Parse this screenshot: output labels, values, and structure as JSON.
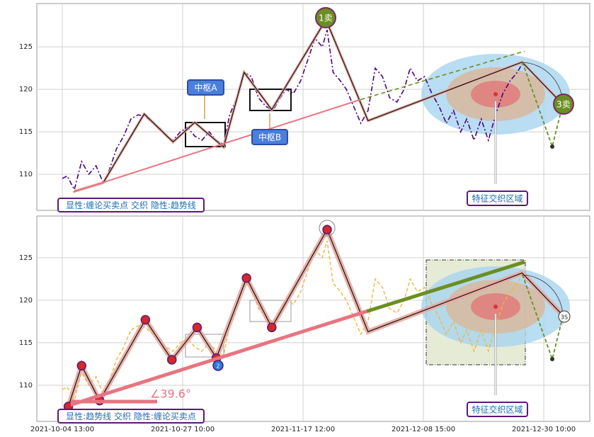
{
  "chart_data": [
    {
      "type": "line",
      "xlim": [
        -21.2,
        438.2
      ],
      "ylim": [
        105.75,
        130.1
      ],
      "yticks": [
        110,
        115,
        120,
        125
      ],
      "grid": true,
      "series": [
        {
          "color": "#4b0082",
          "style": "dashdot",
          "x": [
            0,
            4,
            10,
            16,
            22,
            28,
            34,
            39,
            45,
            51,
            57,
            63,
            69,
            75,
            81,
            86,
            92,
            98,
            104,
            110,
            116,
            122,
            128,
            134,
            139,
            145,
            151,
            157,
            163,
            169,
            175,
            181,
            186,
            192,
            198,
            204,
            210,
            216,
            220,
            225,
            231,
            236,
            242,
            248,
            254,
            260,
            266,
            272,
            278,
            284,
            289,
            295,
            301,
            307,
            313,
            319,
            325,
            331,
            336,
            342,
            348,
            354,
            360,
            366,
            372,
            378,
            382
          ],
          "values": [
            109.5,
            109.8,
            108.2,
            111.5,
            110,
            111,
            109,
            110.5,
            113,
            114.5,
            116.5,
            117,
            116.8,
            116,
            115.5,
            114.5,
            114,
            115,
            115.5,
            114.5,
            114,
            115,
            114,
            113.5,
            117,
            119,
            122,
            121.5,
            119,
            118,
            117.5,
            119,
            120,
            119.5,
            121,
            123.5,
            126,
            125,
            127,
            122,
            121,
            120,
            118,
            116,
            117.5,
            122.5,
            121.5,
            119,
            118.5,
            120,
            122.5,
            121,
            121.5,
            119.5,
            118,
            116,
            117.5,
            115,
            116.5,
            114,
            116.5,
            114,
            117,
            119.5,
            121,
            122,
            123
          ]
        },
        {
          "color": "#111111",
          "style": "bi",
          "x": [
            10,
            34,
            68,
            92,
            110,
            134,
            151,
            174,
            219,
            254,
            382,
            416
          ],
          "values": [
            108,
            109,
            117.1,
            113.8,
            116.1,
            113.2,
            122,
            117.6,
            128.2,
            116.3,
            123.2,
            118.2
          ]
        },
        {
          "color": "#e87480",
          "style": "trend",
          "x": [
            9,
            248
          ],
          "values": [
            107.9,
            118.8
          ]
        },
        {
          "color": "#6b8e23",
          "style": "trend-dashed",
          "x": [
            248,
            384
          ],
          "values": [
            118.8,
            124.5
          ]
        }
      ],
      "annotations": [
        "中枢A",
        "中枢B",
        "1卖",
        "3卖",
        "特征交织区域",
        "显性:缠论买卖点 交织 隐性:趋势线"
      ]
    },
    {
      "type": "line",
      "xlim": [
        -21.2,
        438.2
      ],
      "ylim": [
        105.75,
        129.9
      ],
      "yticks": [
        110,
        115,
        120,
        125
      ],
      "grid": true,
      "xticks": [
        {
          "value": 0,
          "label": "2021-10-04 13:00"
        },
        {
          "value": 100,
          "label": "2021-10-27 10:00"
        },
        {
          "value": 200,
          "label": "2021-11-17 12:00"
        },
        {
          "value": 300,
          "label": "2021-12-08 15:00"
        },
        {
          "value": 400,
          "label": "2021-12-30 10:00"
        }
      ],
      "series": [
        {
          "color": "#f0b73d",
          "style": "dashed",
          "x": [
            0,
            4,
            10,
            16,
            22,
            28,
            34,
            39,
            45,
            51,
            57,
            63,
            69,
            75,
            81,
            86,
            92,
            98,
            104,
            110,
            116,
            122,
            128,
            134,
            139,
            145,
            151,
            157,
            163,
            169,
            175,
            181,
            186,
            192,
            198,
            204,
            210,
            216,
            220,
            225,
            231,
            236,
            242,
            248,
            254,
            260,
            266,
            272,
            278,
            284,
            289,
            295,
            301,
            307,
            313,
            319,
            325,
            331,
            336,
            342,
            348,
            354,
            360,
            366,
            372,
            378,
            382
          ],
          "values": [
            109.5,
            109.8,
            108.2,
            111.5,
            110,
            111,
            109,
            110.5,
            113,
            114.5,
            116.5,
            117,
            116.8,
            116,
            115.5,
            114.5,
            114,
            115,
            115.5,
            114.5,
            114,
            115,
            114,
            113.5,
            117,
            119,
            122,
            121.5,
            119,
            118,
            117.5,
            119,
            120,
            119.5,
            121,
            123.5,
            126,
            125,
            127,
            122,
            121,
            120,
            118,
            116,
            117.5,
            122.5,
            121.5,
            119,
            118.5,
            120,
            122.5,
            121,
            121.5,
            119.5,
            118,
            116,
            117.5,
            115,
            116.5,
            114,
            116.5,
            114,
            117,
            119.5,
            121,
            122,
            123
          ]
        },
        {
          "color": "#111111",
          "style": "bi",
          "x": [
            5,
            16,
            31,
            69,
            91,
            112,
            128,
            153,
            174,
            220,
            254,
            382,
            416
          ],
          "values": [
            107.5,
            112.3,
            108.2,
            117.7,
            113,
            116.8,
            113.2,
            122.6,
            116.8,
            128.3,
            116.3,
            123.2,
            118.2
          ]
        },
        {
          "color": "#e87480",
          "style": "trend",
          "x": [
            7,
            253
          ],
          "values": [
            107.7,
            118.7
          ]
        },
        {
          "color": "#6b8e23",
          "style": "trend",
          "x": [
            253,
            384
          ],
          "values": [
            118.7,
            124.5
          ]
        }
      ],
      "annotations": [
        "特征交织区域",
        "显性:趋势线 交织 隐性:缠论买卖点",
        "∠39.6°",
        "3S",
        "2"
      ]
    }
  ]
}
